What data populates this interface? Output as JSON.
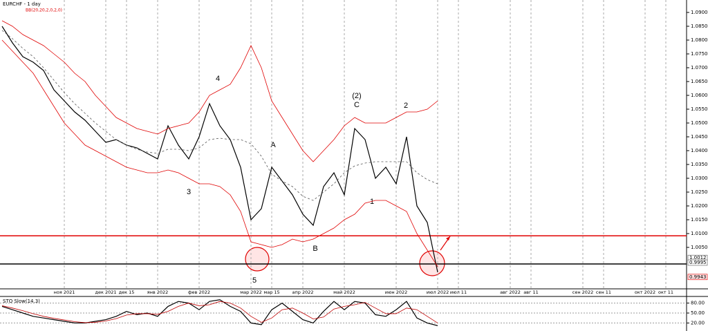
{
  "chart_data": [
    {
      "type": "line",
      "title": "EURCHF - 1 day",
      "subtitle": "BB(20,20,2,0,2,0)",
      "categories": [
        null,
        null,
        null,
        null,
        null,
        null,
        "ноя 2021",
        null,
        null,
        null,
        "дек 2021",
        null,
        "дек 15",
        null,
        null,
        "янв 2022",
        null,
        null,
        null,
        "фев 2022",
        null,
        null,
        null,
        null,
        "мар 2022",
        null,
        "мар 15",
        null,
        null,
        "апр 2022",
        null,
        null,
        null,
        "май 2022",
        null,
        null,
        null,
        null,
        "июн 2022",
        null,
        null,
        null,
        "июл 2022",
        null,
        "июл 11",
        null,
        null,
        null,
        null,
        "авг 2022",
        null,
        "авг 11",
        null,
        null,
        null,
        null,
        "сен 2022",
        null,
        "сен 11",
        null,
        null,
        null,
        "окт 2022",
        null,
        "окт 11",
        null
      ],
      "series": [
        {
          "color": "#000000",
          "values": [
            1.085,
            1.079,
            1.074,
            1.072,
            1.069,
            1.062,
            1.058,
            1.054,
            1.051,
            1.047,
            1.043,
            1.044,
            1.042,
            1.041,
            1.039,
            1.037,
            1.049,
            1.042,
            1.037,
            1.045,
            1.057,
            1.049,
            1.044,
            1.034,
            1.015,
            1.019,
            1.034,
            1.029,
            1.024,
            1.017,
            1.013,
            1.027,
            1.032,
            1.024,
            1.048,
            1.044,
            1.03,
            1.034,
            1.028,
            1.045,
            1.02,
            1.014,
            0.996,
            null,
            null,
            null,
            null,
            null,
            null,
            null,
            null,
            null,
            null,
            null,
            null,
            null,
            null,
            null,
            null,
            null,
            null,
            null,
            null,
            null,
            null,
            null
          ]
        },
        {
          "color": "#e00000",
          "values": [
            1.087,
            1.085,
            1.082,
            1.08,
            1.078,
            1.075,
            1.072,
            1.068,
            1.065,
            1.06,
            1.056,
            1.052,
            1.05,
            1.048,
            1.047,
            1.046,
            1.048,
            1.049,
            1.05,
            1.054,
            1.06,
            1.062,
            1.064,
            1.07,
            1.078,
            1.07,
            1.058,
            1.052,
            1.046,
            1.04,
            1.036,
            1.04,
            1.044,
            1.049,
            1.052,
            1.05,
            1.05,
            1.05,
            1.052,
            1.054,
            1.054,
            1.055,
            1.058,
            null,
            null,
            null,
            null,
            null,
            null,
            null,
            null,
            null,
            null,
            null,
            null,
            null,
            null,
            null,
            null,
            null,
            null,
            null,
            null,
            null,
            null,
            null
          ]
        },
        {
          "color": "#e00000",
          "values": [
            1.08,
            1.076,
            1.072,
            1.068,
            1.062,
            1.056,
            1.05,
            1.046,
            1.042,
            1.04,
            1.038,
            1.036,
            1.034,
            1.033,
            1.032,
            1.032,
            1.033,
            1.032,
            1.03,
            1.028,
            1.028,
            1.027,
            1.024,
            1.018,
            1.007,
            1.006,
            1.005,
            1.006,
            1.008,
            1.007,
            1.008,
            1.01,
            1.012,
            1.015,
            1.017,
            1.021,
            1.022,
            1.022,
            1.02,
            1.018,
            1.01,
            1.004,
            0.998,
            null,
            null,
            null,
            null,
            null,
            null,
            null,
            null,
            null,
            null,
            null,
            null,
            null,
            null,
            null,
            null,
            null,
            null,
            null,
            null,
            null,
            null,
            null
          ]
        },
        {
          "color": "#555555",
          "style": "dashed",
          "values": [
            1.0835,
            1.0805,
            1.077,
            1.074,
            1.07,
            1.0655,
            1.061,
            1.057,
            1.0535,
            1.05,
            1.047,
            1.044,
            1.042,
            1.0405,
            1.0395,
            1.039,
            1.0405,
            1.0405,
            1.04,
            1.041,
            1.044,
            1.0445,
            1.044,
            1.044,
            1.0425,
            1.038,
            1.0315,
            1.029,
            1.027,
            1.0235,
            1.022,
            1.025,
            1.028,
            1.032,
            1.0345,
            1.0355,
            1.036,
            1.036,
            1.036,
            1.036,
            1.032,
            1.0295,
            1.028,
            null,
            null,
            null,
            null,
            null,
            null,
            null,
            null,
            null,
            null,
            null,
            null,
            null,
            null,
            null,
            null,
            null,
            null,
            null,
            null,
            null,
            null,
            null
          ]
        }
      ],
      "ylim": [
        0.99,
        1.0945
      ],
      "yticks": [
        {
          "value": 1.09,
          "label": "1.0900"
        },
        {
          "value": 1.085,
          "label": "1.0850"
        },
        {
          "value": 1.08,
          "label": "1.0800"
        },
        {
          "value": 1.075,
          "label": "1.0750"
        },
        {
          "value": 1.07,
          "label": "1.0700"
        },
        {
          "value": 1.065,
          "label": "1.0650"
        },
        {
          "value": 1.06,
          "label": "1.0600"
        },
        {
          "value": 1.055,
          "label": "1.0550"
        },
        {
          "value": 1.05,
          "label": "1.0500"
        },
        {
          "value": 1.045,
          "label": "1.0450"
        },
        {
          "value": 1.04,
          "label": "1.0400"
        },
        {
          "value": 1.035,
          "label": "1.0350"
        },
        {
          "value": 1.03,
          "label": "1.0300"
        },
        {
          "value": 1.025,
          "label": "1.0250"
        },
        {
          "value": 1.02,
          "label": "1.0200"
        },
        {
          "value": 1.015,
          "label": "1.0150"
        },
        {
          "value": 1.01,
          "label": "1.0100"
        },
        {
          "value": 1.005,
          "label": "1.0050"
        }
      ],
      "hlines": [
        {
          "value": 1.0092,
          "color": "#e00000"
        },
        {
          "value": 0.999,
          "color": "#000000"
        }
      ],
      "price_markers": [
        {
          "value": 1.0012,
          "label": "1.0012"
        },
        {
          "value": 0.9995,
          "label": "0.9995"
        },
        {
          "value": 0.9943,
          "label": "0.9943"
        }
      ],
      "annotations": [
        "4",
        "3",
        "5",
        "A",
        "B",
        "(2)",
        "C",
        "2",
        "1"
      ]
    },
    {
      "type": "line",
      "title": "STO Slow(14,3)",
      "series": [
        {
          "color": "#000000",
          "values": [
            70,
            60,
            50,
            40,
            35,
            30,
            25,
            20,
            20,
            25,
            30,
            40,
            55,
            45,
            50,
            40,
            70,
            85,
            80,
            60,
            85,
            90,
            70,
            55,
            20,
            15,
            60,
            80,
            55,
            30,
            20,
            55,
            85,
            60,
            85,
            80,
            45,
            40,
            60,
            85,
            35,
            20,
            12
          ]
        },
        {
          "color": "#c00000",
          "values": [
            72,
            65,
            57,
            48,
            40,
            34,
            29,
            24,
            21,
            22,
            26,
            33,
            44,
            48,
            48,
            46,
            55,
            70,
            80,
            72,
            75,
            85,
            80,
            65,
            40,
            22,
            35,
            60,
            65,
            50,
            32,
            38,
            62,
            70,
            75,
            82,
            65,
            48,
            48,
            65,
            60,
            40,
            20
          ]
        }
      ],
      "ylim": [
        0,
        100
      ],
      "yticks": [
        {
          "value": 80,
          "label": "80.00"
        },
        {
          "value": 50,
          "label": "50.00"
        },
        {
          "value": 20,
          "label": "20.00"
        }
      ]
    }
  ]
}
